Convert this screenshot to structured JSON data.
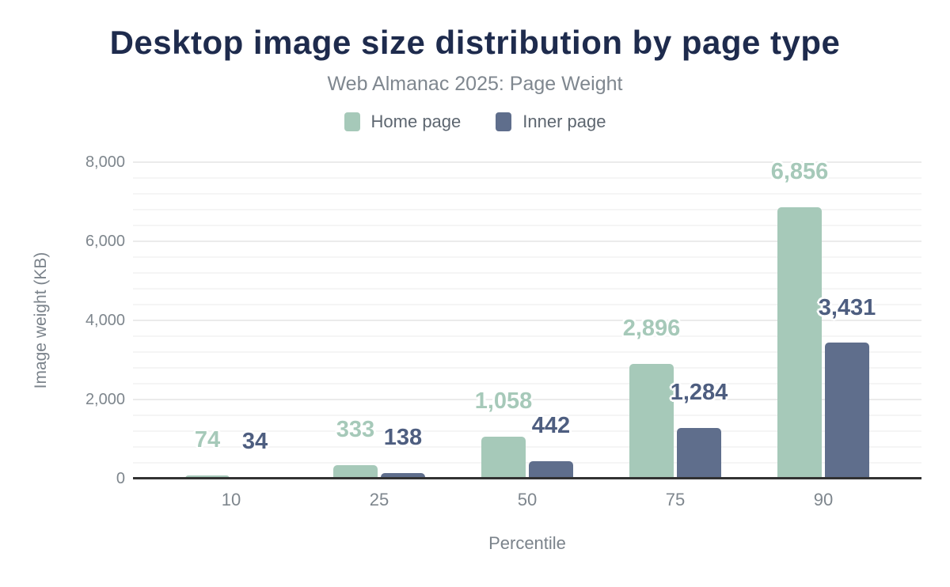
{
  "header": {
    "title": "Desktop image size distribution by page type",
    "subtitle": "Web Almanac 2025: Page Weight"
  },
  "legend": [
    {
      "label": "Home page",
      "color": "#a6c9b9",
      "icon": "legend-swatch"
    },
    {
      "label": "Inner page",
      "color": "#5f6e8c",
      "icon": "legend-swatch"
    }
  ],
  "chart_data": {
    "type": "bar",
    "title": "Desktop image size distribution by page type",
    "subtitle": "Web Almanac 2025: Page Weight",
    "categories": [
      "10",
      "25",
      "50",
      "75",
      "90"
    ],
    "series": [
      {
        "name": "Home page",
        "color": "#a6c9b9",
        "label_color": "#a6c9b9",
        "values": [
          74,
          333,
          1058,
          2896,
          6856
        ],
        "labels": [
          "74",
          "333",
          "1,058",
          "2,896",
          "6,856"
        ]
      },
      {
        "name": "Inner page",
        "color": "#5f6e8c",
        "label_color": "#4e5e80",
        "values": [
          34,
          138,
          442,
          1284,
          3431
        ],
        "labels": [
          "34",
          "138",
          "442",
          "1,284",
          "3,431"
        ]
      }
    ],
    "xlabel": "Percentile",
    "ylabel": "Image weight (KB)",
    "ylim": [
      0,
      8000
    ],
    "yticks": [
      0,
      2000,
      4000,
      6000,
      8000
    ],
    "ytick_labels": [
      "0",
      "2,000",
      "4,000",
      "6,000",
      "8,000"
    ],
    "minor_grid_step": 400,
    "grid": true,
    "legend_position": "top",
    "value_labels_shown": true
  }
}
